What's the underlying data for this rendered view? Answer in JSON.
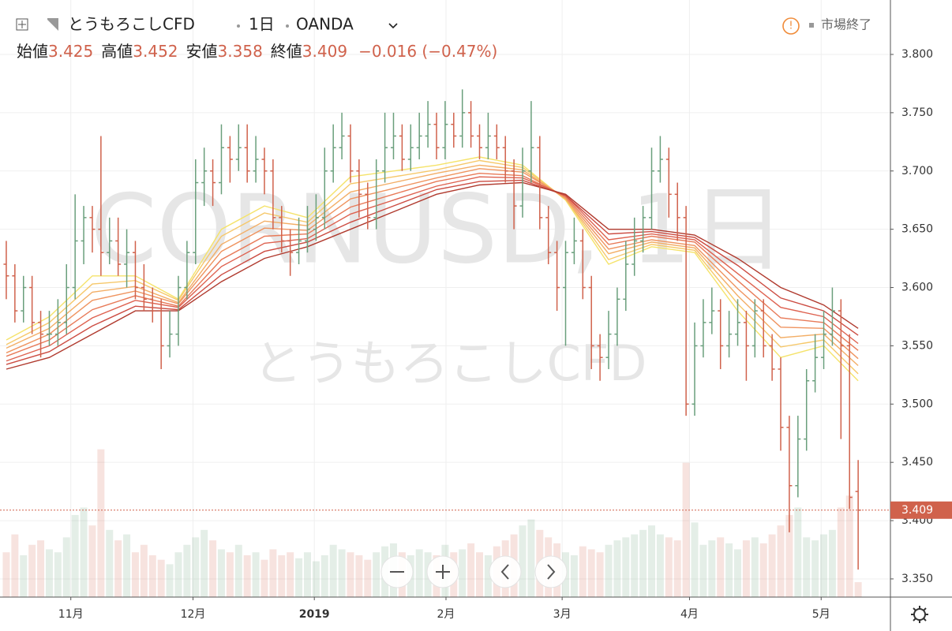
{
  "chart_data": {
    "type": "ohlc",
    "symbol": "とうもろこしCFD",
    "interval": "1日",
    "source": "OANDA",
    "status": "市場終了",
    "open_label": "始値",
    "high_label": "高値",
    "low_label": "安値",
    "close_label": "終値",
    "change_label": "−0.016 (−0.47%)",
    "watermark": "CORNUSD, 1日",
    "watermark_sub": "とうもろこしCFD",
    "up_color": "#6a9f7c",
    "down_color": "#d0624c",
    "xlim": [
      -0.73,
      102.75
    ],
    "xticks": [
      {
        "value": 7.5,
        "label": "11月"
      },
      {
        "value": 21.7,
        "label": "12月"
      },
      {
        "value": 35.8,
        "label": "2019"
      },
      {
        "value": 51.1,
        "label": "2月"
      },
      {
        "value": 64.6,
        "label": "3月"
      },
      {
        "value": 79.4,
        "label": "4月"
      },
      {
        "value": 94.7,
        "label": "5月"
      }
    ],
    "ylim": [
      3.3344,
      3.8467
    ],
    "yticks": [
      {
        "value": 3.35,
        "label": "3.350"
      },
      {
        "value": 3.4,
        "label": "3.400"
      },
      {
        "value": 3.45,
        "label": "3.450"
      },
      {
        "value": 3.5,
        "label": "3.500"
      },
      {
        "value": 3.55,
        "label": "3.550"
      },
      {
        "value": 3.6,
        "label": "3.600"
      },
      {
        "value": 3.65,
        "label": "3.650"
      },
      {
        "value": 3.7,
        "label": "3.700"
      },
      {
        "value": 3.75,
        "label": "3.750"
      },
      {
        "value": 3.8,
        "label": "3.800"
      }
    ],
    "grid": true,
    "open": [
      3.62,
      3.61,
      3.58,
      3.6,
      3.57,
      3.56,
      3.56,
      3.57,
      3.6,
      3.64,
      3.66,
      3.65,
      3.63,
      3.64,
      3.62,
      3.63,
      3.6,
      3.59,
      3.58,
      3.55,
      3.56,
      3.6,
      3.63,
      3.69,
      3.7,
      3.69,
      3.72,
      3.71,
      3.72,
      3.7,
      3.71,
      3.7,
      3.66,
      3.64,
      3.63,
      3.64,
      3.65,
      3.66,
      3.7,
      3.72,
      3.73,
      3.7,
      3.68,
      3.66,
      3.7,
      3.72,
      3.73,
      3.71,
      3.72,
      3.73,
      3.74,
      3.72,
      3.74,
      3.73,
      3.75,
      3.73,
      3.72,
      3.73,
      3.72,
      3.7,
      3.67,
      3.7,
      3.72,
      3.66,
      3.63,
      3.6,
      3.63,
      3.64,
      3.6,
      3.55,
      3.54,
      3.56,
      3.59,
      3.62,
      3.64,
      3.66,
      3.7,
      3.71,
      3.68,
      3.66,
      3.5,
      3.55,
      3.57,
      3.58,
      3.55,
      3.56,
      3.57,
      3.55,
      3.58,
      3.55,
      3.53,
      3.48,
      3.43,
      3.47,
      3.52,
      3.54,
      3.56,
      3.58,
      3.55,
      3.425
    ],
    "high": [
      3.64,
      3.62,
      3.61,
      3.61,
      3.58,
      3.58,
      3.59,
      3.62,
      3.68,
      3.67,
      3.67,
      3.73,
      3.66,
      3.66,
      3.65,
      3.64,
      3.62,
      3.6,
      3.59,
      3.58,
      3.61,
      3.64,
      3.71,
      3.72,
      3.71,
      3.74,
      3.73,
      3.74,
      3.74,
      3.73,
      3.72,
      3.71,
      3.67,
      3.65,
      3.66,
      3.67,
      3.68,
      3.72,
      3.74,
      3.75,
      3.74,
      3.71,
      3.69,
      3.71,
      3.75,
      3.75,
      3.74,
      3.74,
      3.75,
      3.76,
      3.75,
      3.76,
      3.75,
      3.77,
      3.76,
      3.74,
      3.75,
      3.74,
      3.73,
      3.71,
      3.72,
      3.76,
      3.73,
      3.67,
      3.64,
      3.64,
      3.66,
      3.65,
      3.61,
      3.56,
      3.58,
      3.6,
      3.64,
      3.66,
      3.67,
      3.72,
      3.73,
      3.72,
      3.69,
      3.67,
      3.57,
      3.59,
      3.6,
      3.59,
      3.58,
      3.59,
      3.58,
      3.59,
      3.59,
      3.56,
      3.54,
      3.49,
      3.49,
      3.53,
      3.56,
      3.58,
      3.6,
      3.59,
      3.56,
      3.452
    ],
    "low": [
      3.59,
      3.57,
      3.57,
      3.56,
      3.54,
      3.55,
      3.55,
      3.56,
      3.59,
      3.62,
      3.63,
      3.61,
      3.62,
      3.61,
      3.6,
      3.59,
      3.58,
      3.57,
      3.53,
      3.54,
      3.55,
      3.59,
      3.62,
      3.67,
      3.67,
      3.68,
      3.69,
      3.7,
      3.69,
      3.69,
      3.68,
      3.65,
      3.63,
      3.61,
      3.62,
      3.63,
      3.64,
      3.65,
      3.69,
      3.71,
      3.69,
      3.66,
      3.65,
      3.65,
      3.69,
      3.71,
      3.7,
      3.7,
      3.71,
      3.72,
      3.71,
      3.71,
      3.72,
      3.72,
      3.72,
      3.71,
      3.71,
      3.71,
      3.69,
      3.65,
      3.66,
      3.69,
      3.65,
      3.62,
      3.58,
      3.55,
      3.62,
      3.59,
      3.53,
      3.52,
      3.53,
      3.55,
      3.58,
      3.61,
      3.63,
      3.65,
      3.69,
      3.66,
      3.64,
      3.49,
      3.49,
      3.54,
      3.56,
      3.53,
      3.54,
      3.55,
      3.52,
      3.54,
      3.54,
      3.52,
      3.46,
      3.39,
      3.42,
      3.46,
      3.51,
      3.53,
      3.55,
      3.47,
      3.41,
      3.358
    ],
    "close": [
      3.61,
      3.58,
      3.6,
      3.57,
      3.56,
      3.56,
      3.57,
      3.6,
      3.64,
      3.66,
      3.65,
      3.63,
      3.64,
      3.62,
      3.63,
      3.6,
      3.59,
      3.58,
      3.55,
      3.56,
      3.6,
      3.63,
      3.69,
      3.7,
      3.69,
      3.72,
      3.71,
      3.72,
      3.7,
      3.71,
      3.7,
      3.66,
      3.64,
      3.63,
      3.64,
      3.65,
      3.66,
      3.7,
      3.72,
      3.73,
      3.7,
      3.68,
      3.66,
      3.7,
      3.72,
      3.73,
      3.71,
      3.72,
      3.73,
      3.74,
      3.72,
      3.74,
      3.73,
      3.75,
      3.73,
      3.72,
      3.73,
      3.72,
      3.7,
      3.67,
      3.7,
      3.72,
      3.66,
      3.63,
      3.6,
      3.63,
      3.64,
      3.6,
      3.55,
      3.54,
      3.56,
      3.59,
      3.62,
      3.64,
      3.66,
      3.7,
      3.71,
      3.68,
      3.66,
      3.5,
      3.55,
      3.57,
      3.58,
      3.55,
      3.56,
      3.57,
      3.55,
      3.58,
      3.55,
      3.53,
      3.48,
      3.43,
      3.47,
      3.52,
      3.54,
      3.56,
      3.58,
      3.55,
      3.42,
      3.409
    ],
    "vlim": [
      0,
      400
    ],
    "volume": [
      30,
      42,
      28,
      35,
      38,
      32,
      30,
      40,
      55,
      60,
      48,
      99,
      45,
      38,
      42,
      30,
      35,
      28,
      25,
      22,
      30,
      35,
      40,
      45,
      38,
      32,
      30,
      35,
      28,
      30,
      25,
      32,
      28,
      30,
      26,
      30,
      24,
      28,
      35,
      32,
      30,
      28,
      25,
      30,
      34,
      36,
      30,
      28,
      32,
      30,
      28,
      35,
      30,
      32,
      36,
      30,
      28,
      34,
      38,
      42,
      48,
      52,
      45,
      40,
      36,
      30,
      28,
      34,
      32,
      30,
      35,
      38,
      40,
      42,
      45,
      48,
      42,
      40,
      38,
      90,
      50,
      35,
      38,
      40,
      36,
      32,
      38,
      40,
      36,
      42,
      48,
      55,
      60,
      40,
      38,
      42,
      45,
      60,
      68,
      10
    ],
    "ma_x": [
      0,
      5,
      10,
      15,
      20,
      25,
      30,
      35,
      40,
      45,
      50,
      55,
      60,
      65,
      70,
      75,
      80,
      85,
      90,
      95,
      99
    ],
    "ma": [
      {
        "color": "#f5e36b",
        "values": [
          3.555,
          3.575,
          3.61,
          3.61,
          3.59,
          3.65,
          3.67,
          3.66,
          3.695,
          3.7,
          3.705,
          3.712,
          3.705,
          3.675,
          3.62,
          3.635,
          3.63,
          3.58,
          3.54,
          3.55,
          3.52
        ]
      },
      {
        "color": "#f6c86a",
        "values": [
          3.551,
          3.57,
          3.603,
          3.606,
          3.589,
          3.644,
          3.664,
          3.656,
          3.689,
          3.695,
          3.701,
          3.709,
          3.703,
          3.676,
          3.624,
          3.637,
          3.632,
          3.586,
          3.549,
          3.555,
          3.526
        ]
      },
      {
        "color": "#f3ae66",
        "values": [
          3.548,
          3.565,
          3.596,
          3.601,
          3.587,
          3.637,
          3.657,
          3.653,
          3.682,
          3.69,
          3.698,
          3.705,
          3.701,
          3.676,
          3.629,
          3.639,
          3.634,
          3.593,
          3.557,
          3.56,
          3.533
        ]
      },
      {
        "color": "#ef9460",
        "values": [
          3.544,
          3.56,
          3.589,
          3.597,
          3.586,
          3.631,
          3.651,
          3.649,
          3.676,
          3.685,
          3.694,
          3.702,
          3.699,
          3.677,
          3.633,
          3.641,
          3.636,
          3.599,
          3.566,
          3.565,
          3.539
        ]
      },
      {
        "color": "#e87a58",
        "values": [
          3.541,
          3.555,
          3.581,
          3.593,
          3.584,
          3.624,
          3.644,
          3.646,
          3.669,
          3.68,
          3.691,
          3.698,
          3.696,
          3.678,
          3.637,
          3.644,
          3.639,
          3.606,
          3.574,
          3.57,
          3.546
        ]
      },
      {
        "color": "#de6250",
        "values": [
          3.537,
          3.55,
          3.574,
          3.589,
          3.583,
          3.618,
          3.638,
          3.642,
          3.663,
          3.675,
          3.687,
          3.695,
          3.694,
          3.679,
          3.641,
          3.646,
          3.641,
          3.612,
          3.583,
          3.575,
          3.552
        ]
      },
      {
        "color": "#cc4c42",
        "values": [
          3.534,
          3.545,
          3.567,
          3.584,
          3.581,
          3.611,
          3.631,
          3.639,
          3.656,
          3.67,
          3.684,
          3.691,
          3.692,
          3.679,
          3.646,
          3.648,
          3.643,
          3.619,
          3.591,
          3.58,
          3.559
        ]
      },
      {
        "color": "#b03a2e",
        "values": [
          3.53,
          3.54,
          3.56,
          3.58,
          3.58,
          3.605,
          3.625,
          3.635,
          3.65,
          3.665,
          3.68,
          3.688,
          3.69,
          3.68,
          3.65,
          3.65,
          3.645,
          3.625,
          3.6,
          3.585,
          3.565
        ]
      }
    ]
  }
}
